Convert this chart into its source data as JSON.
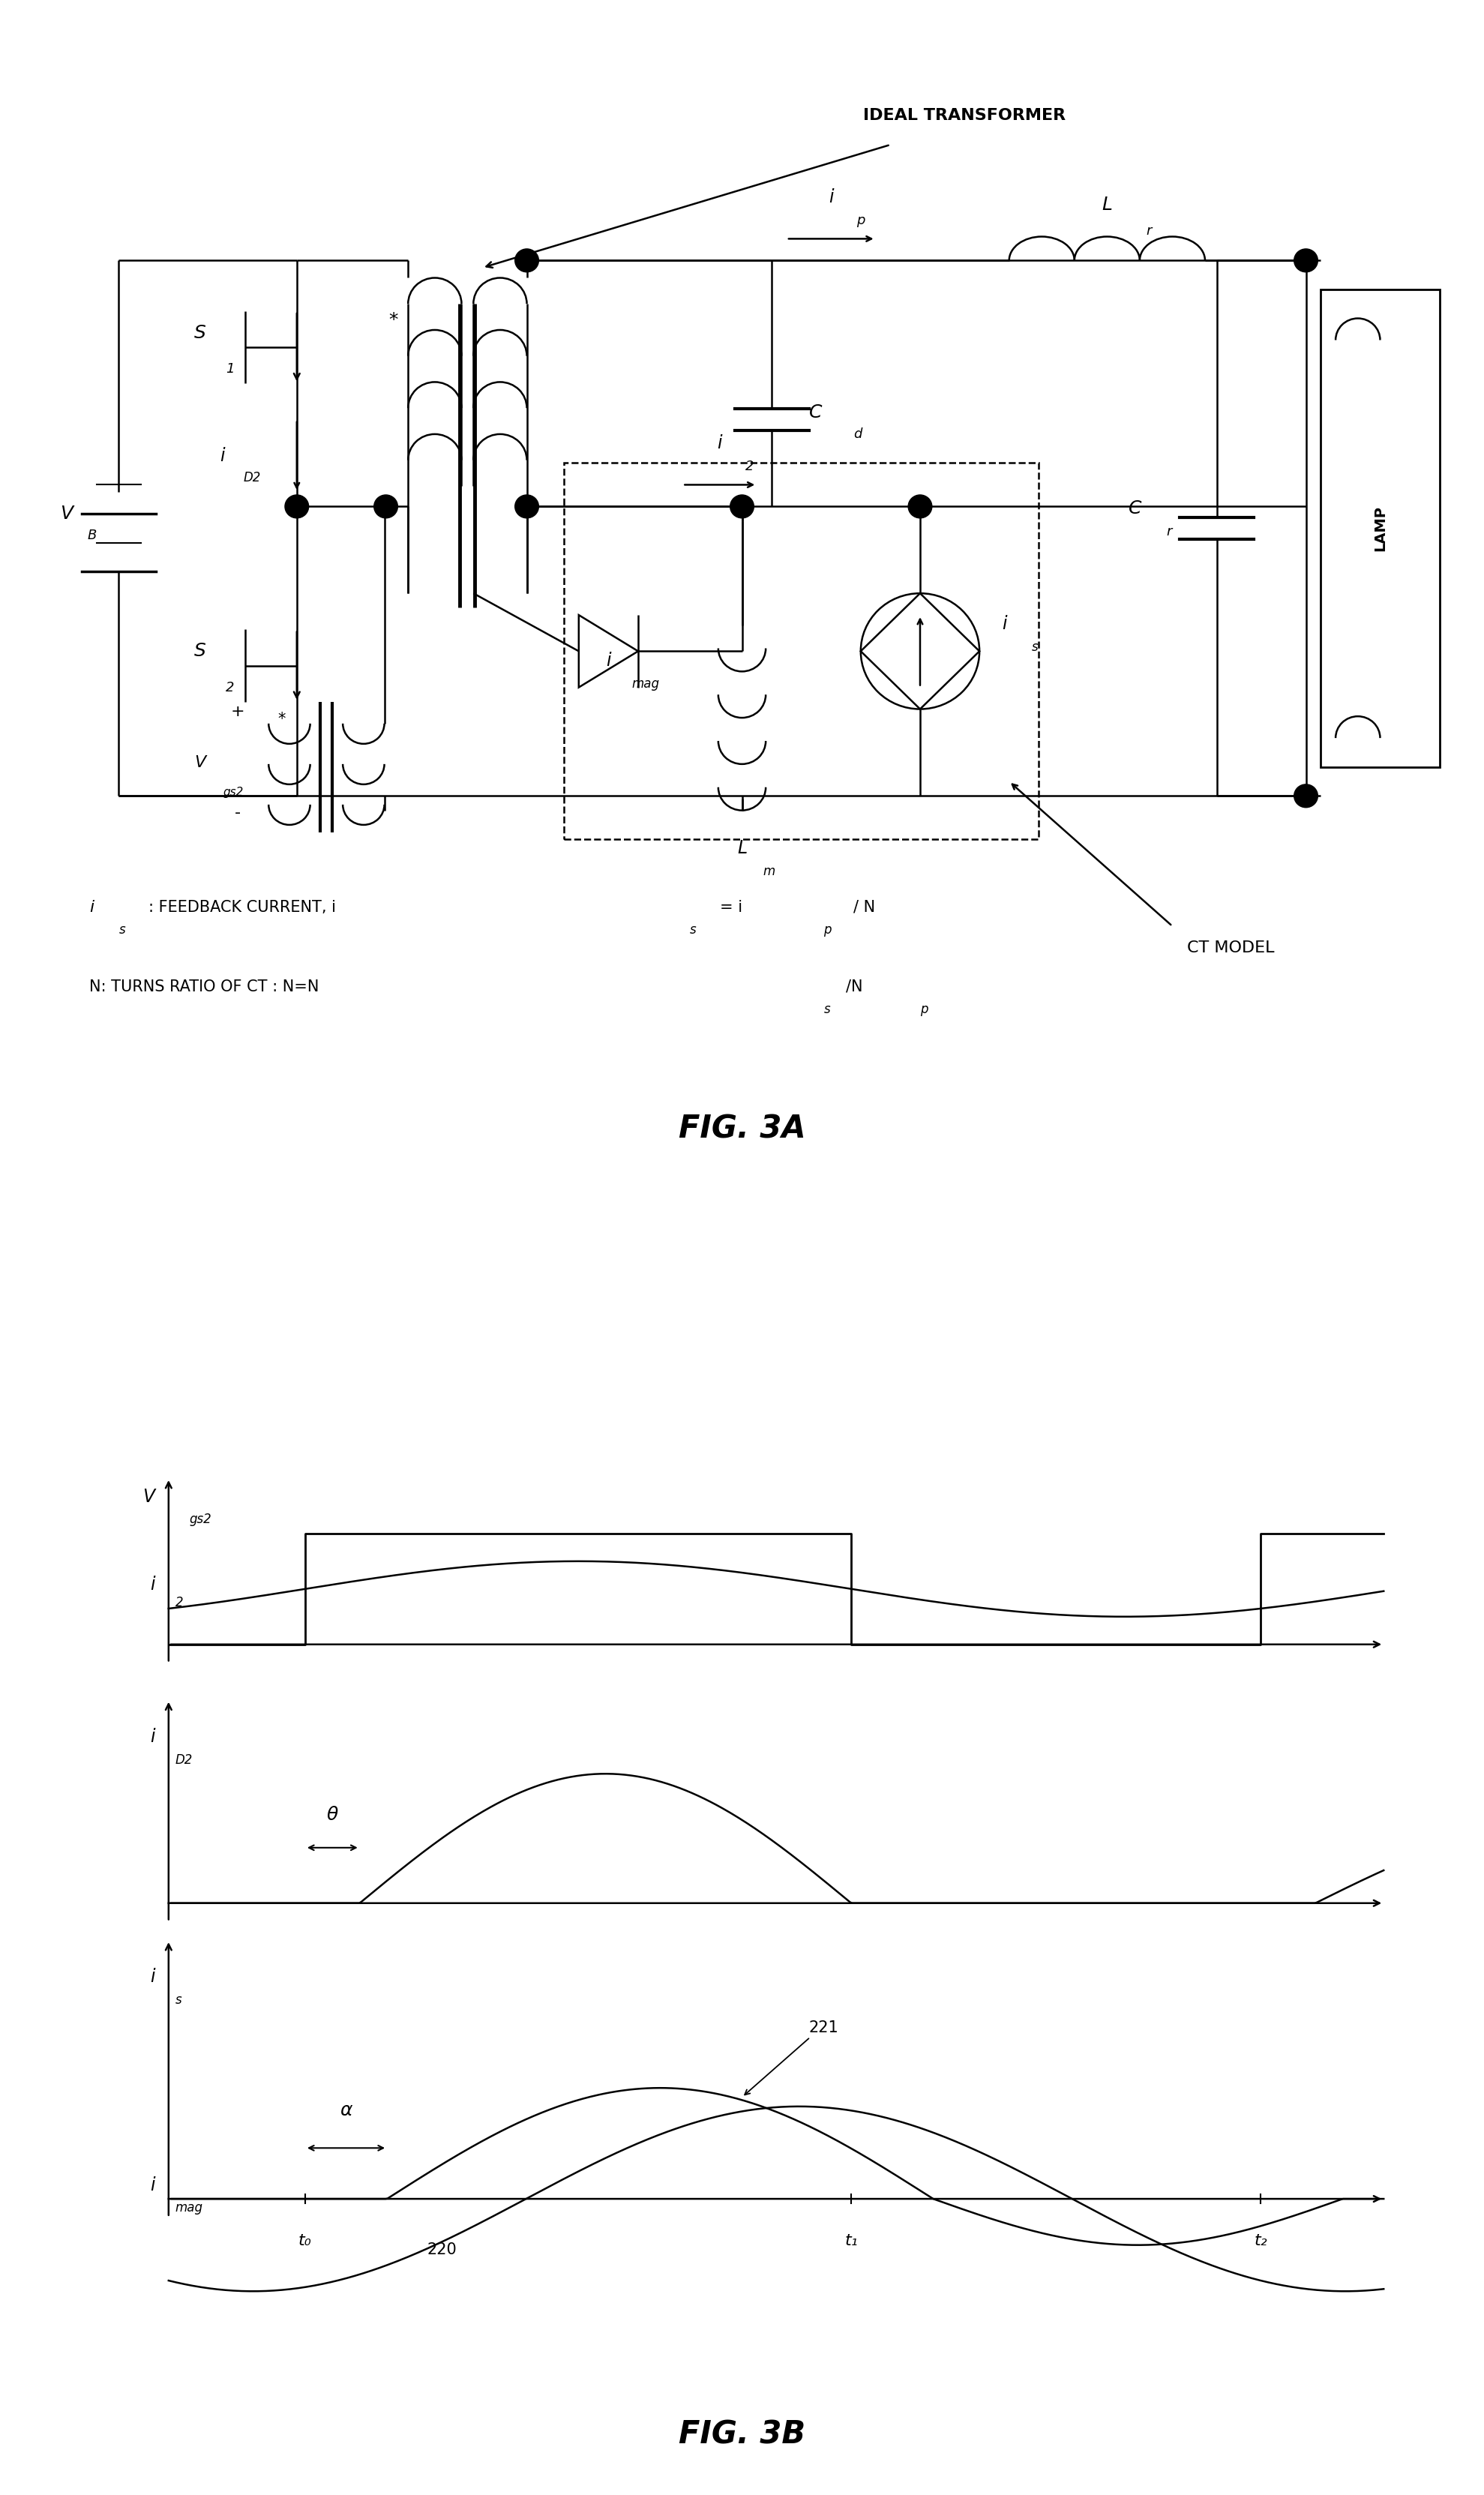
{
  "fig_width": 19.79,
  "fig_height": 33.27,
  "bg_color": "#ffffff",
  "fig3a_title": "FIG. 3A",
  "fig3b_title": "FIG. 3B",
  "footnote_line1": "is: FEEDBACK CURRENT, is = ip / N",
  "footnote_line2": "N: TURNS RATIO OF CT : N=Ns/Np"
}
